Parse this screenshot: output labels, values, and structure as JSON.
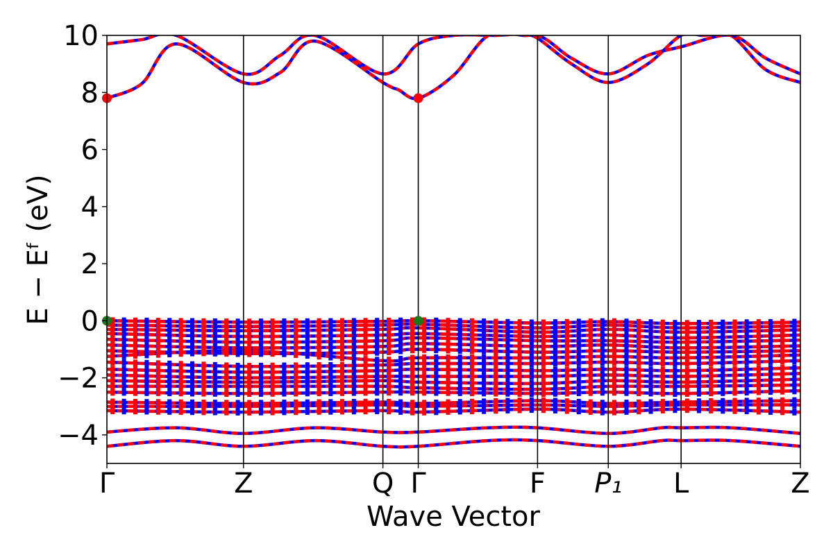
{
  "chart_data": {
    "type": "line",
    "title": "",
    "xlabel": "Wave Vector",
    "ylabel": "E − Eᶠ (eV)",
    "ylim": [
      -5,
      10
    ],
    "y_ticks": [
      -4,
      -2,
      0,
      2,
      4,
      6,
      8,
      10
    ],
    "y_tick_labels": [
      "−4",
      "−2",
      "0",
      "2",
      "4",
      "6",
      "8",
      "10"
    ],
    "k_path": [
      {
        "label": "Γ",
        "x": 0.0
      },
      {
        "label": "Z",
        "x": 0.197
      },
      {
        "label": "Q",
        "x": 0.398
      },
      {
        "label": "Γ",
        "x": 0.449
      },
      {
        "label": "F",
        "x": 0.621
      },
      {
        "label": "P₁",
        "x": 0.723
      },
      {
        "label": "L",
        "x": 0.828
      },
      {
        "label": "Z",
        "x": 1.0
      }
    ],
    "grid": false,
    "legend": "none",
    "series_style": {
      "spin_up_color": "#0000ff",
      "spin_down_color": "#ff0000",
      "vbm_marker_color": "#1a7a1a",
      "cbm_marker_color": "#ff0000"
    },
    "markers": [
      {
        "kind": "vbm",
        "x": 0.0,
        "y": 0.0
      },
      {
        "kind": "vbm",
        "x": 0.449,
        "y": 0.0
      },
      {
        "kind": "cbm",
        "x": 0.0,
        "y": 7.8
      },
      {
        "kind": "cbm",
        "x": 0.449,
        "y": 7.8
      }
    ],
    "conduction_bands": [
      {
        "x": [
          0,
          0.05,
          0.1,
          0.197,
          0.25,
          0.3,
          0.398,
          0.42,
          0.449,
          0.5,
          0.55,
          0.6,
          0.621,
          0.67,
          0.723,
          0.78,
          0.828,
          0.86,
          0.9,
          0.95,
          1.0
        ],
        "y": [
          7.8,
          8.3,
          9.7,
          8.35,
          8.7,
          9.8,
          8.35,
          8.1,
          7.8,
          8.6,
          10.0,
          10.0,
          9.9,
          9.0,
          8.35,
          9.0,
          10.0,
          10.0,
          10.0,
          8.8,
          8.35
        ]
      },
      {
        "x": [
          0,
          0.05,
          0.1,
          0.197,
          0.25,
          0.3,
          0.398,
          0.449,
          0.5,
          0.56,
          0.621,
          0.67,
          0.723,
          0.78,
          0.828,
          0.9,
          0.95,
          1.0
        ],
        "y": [
          9.7,
          9.85,
          10.0,
          8.65,
          9.3,
          10.0,
          8.65,
          9.7,
          10.0,
          10.0,
          10.0,
          9.2,
          8.65,
          9.3,
          9.6,
          10.0,
          9.2,
          8.65
        ]
      }
    ],
    "valence_bands": [
      {
        "x": [
          0,
          0.197,
          0.398,
          0.449,
          0.621,
          0.723,
          0.828,
          1.0
        ],
        "y": [
          0.0,
          -0.05,
          -0.02,
          0.0,
          -0.08,
          -0.03,
          -0.1,
          -0.05
        ]
      },
      {
        "x": [
          0,
          0.197,
          0.398,
          0.449,
          0.621,
          0.723,
          0.828,
          1.0
        ],
        "y": [
          -0.15,
          -0.2,
          -0.15,
          -0.12,
          -0.25,
          -0.15,
          -0.25,
          -0.18
        ]
      },
      {
        "x": [
          0,
          0.197,
          0.398,
          0.449,
          0.621,
          0.723,
          0.828,
          1.0
        ],
        "y": [
          -0.3,
          -0.35,
          -0.3,
          -0.25,
          -0.4,
          -0.3,
          -0.4,
          -0.32
        ]
      },
      {
        "x": [
          0,
          0.197,
          0.398,
          0.449,
          0.621,
          0.723,
          0.828,
          1.0
        ],
        "y": [
          -0.45,
          -0.55,
          -0.5,
          -0.45,
          -0.55,
          -0.5,
          -0.6,
          -0.5
        ]
      },
      {
        "x": [
          0,
          0.197,
          0.398,
          0.449,
          0.621,
          0.723,
          0.828,
          1.0
        ],
        "y": [
          -0.65,
          -0.75,
          -0.7,
          -0.6,
          -0.7,
          -0.7,
          -0.75,
          -0.68
        ]
      },
      {
        "x": [
          0,
          0.197,
          0.398,
          0.449,
          0.621,
          0.723,
          0.828,
          1.0
        ],
        "y": [
          -0.85,
          -0.95,
          -0.9,
          -0.8,
          -0.9,
          -0.85,
          -0.95,
          -0.88
        ]
      },
      {
        "x": [
          0,
          0.197,
          0.398,
          0.449,
          0.621,
          0.723,
          0.828,
          1.0
        ],
        "y": [
          -1.05,
          -1.15,
          -1.1,
          -1.0,
          -1.1,
          -1.05,
          -1.1,
          -1.05
        ]
      },
      {
        "x": [
          0,
          0.197,
          0.398,
          0.449,
          0.621,
          0.723,
          0.828,
          1.0
        ],
        "y": [
          -1.25,
          -1.05,
          -1.4,
          -1.3,
          -1.3,
          -1.25,
          -1.3,
          -1.2
        ]
      },
      {
        "x": [
          0,
          0.197,
          0.398,
          0.449,
          0.621,
          0.723,
          0.828,
          1.0
        ],
        "y": [
          -1.45,
          -1.6,
          -1.55,
          -1.5,
          -1.5,
          -1.45,
          -1.5,
          -1.4
        ]
      },
      {
        "x": [
          0,
          0.197,
          0.398,
          0.449,
          0.621,
          0.723,
          0.828,
          1.0
        ],
        "y": [
          -1.7,
          -1.8,
          -1.75,
          -1.7,
          -1.75,
          -1.7,
          -1.75,
          -1.65
        ]
      },
      {
        "x": [
          0,
          0.197,
          0.398,
          0.449,
          0.621,
          0.723,
          0.828,
          1.0
        ],
        "y": [
          -1.9,
          -2.0,
          -1.95,
          -1.95,
          -1.95,
          -1.9,
          -1.95,
          -1.85
        ]
      },
      {
        "x": [
          0,
          0.197,
          0.398,
          0.449,
          0.621,
          0.723,
          0.828,
          1.0
        ],
        "y": [
          -2.1,
          -2.15,
          -2.1,
          -2.15,
          -2.2,
          -2.1,
          -2.15,
          -2.05
        ]
      },
      {
        "x": [
          0,
          0.197,
          0.398,
          0.449,
          0.621,
          0.723,
          0.828,
          1.0
        ],
        "y": [
          -2.3,
          -2.3,
          -2.3,
          -2.35,
          -2.4,
          -2.3,
          -2.3,
          -2.25
        ]
      },
      {
        "x": [
          0,
          0.197,
          0.398,
          0.449,
          0.621,
          0.723,
          0.828,
          1.0
        ],
        "y": [
          -2.5,
          -2.55,
          -2.5,
          -2.5,
          -2.55,
          -2.5,
          -2.55,
          -2.45
        ]
      },
      {
        "x": [
          0,
          0.197,
          0.398,
          0.449,
          0.621,
          0.723,
          0.828,
          1.0
        ],
        "y": [
          -2.85,
          -2.9,
          -2.85,
          -2.9,
          -2.8,
          -2.9,
          -2.85,
          -2.8
        ]
      },
      {
        "x": [
          0,
          0.197,
          0.398,
          0.449,
          0.621,
          0.723,
          0.828,
          1.0
        ],
        "y": [
          -3.0,
          -3.0,
          -2.95,
          -3.0,
          -2.95,
          -3.0,
          -2.95,
          -2.95
        ]
      },
      {
        "x": [
          0,
          0.197,
          0.398,
          0.449,
          0.621,
          0.723,
          0.828,
          1.0
        ],
        "y": [
          -3.15,
          -3.2,
          -3.15,
          -3.2,
          -3.1,
          -3.2,
          -3.1,
          -3.2
        ]
      },
      {
        "x": [
          0,
          0.1,
          0.197,
          0.3,
          0.398,
          0.449,
          0.55,
          0.621,
          0.723,
          0.8,
          0.828,
          0.9,
          1.0
        ],
        "y": [
          -3.9,
          -3.75,
          -3.95,
          -3.75,
          -3.9,
          -3.9,
          -3.75,
          -3.75,
          -3.95,
          -3.75,
          -3.75,
          -3.75,
          -3.95
        ]
      },
      {
        "x": [
          0,
          0.1,
          0.197,
          0.3,
          0.398,
          0.449,
          0.55,
          0.621,
          0.723,
          0.8,
          0.828,
          0.9,
          1.0
        ],
        "y": [
          -4.4,
          -4.2,
          -4.4,
          -4.2,
          -4.4,
          -4.4,
          -4.2,
          -4.2,
          -4.4,
          -4.2,
          -4.2,
          -4.2,
          -4.4
        ]
      }
    ]
  }
}
